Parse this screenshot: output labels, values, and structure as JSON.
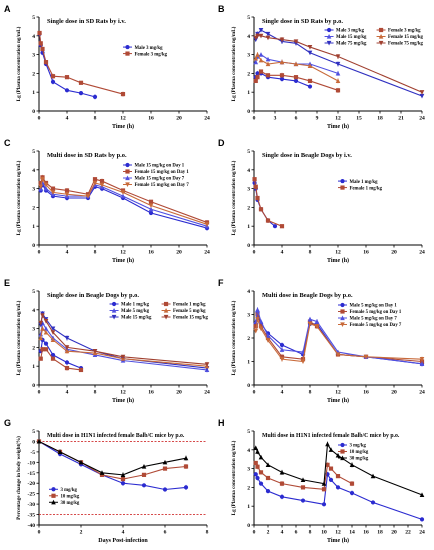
{
  "chart_data": [
    {
      "panel": "A",
      "type": "line",
      "title": "Single dose in SD Rats by i.v.",
      "xlabel": "Time (h)",
      "ylabel": "Lg (Plasma concentration ng/mL)",
      "xlim": [
        0,
        24
      ],
      "ylim": [
        0,
        5
      ],
      "xticks": [
        0,
        4,
        8,
        12,
        16,
        20,
        24
      ],
      "yticks": [
        0,
        1,
        2,
        3,
        4,
        5
      ],
      "legend_position": "center-right",
      "series": [
        {
          "name": "Male 3 mg/kg",
          "color": "#2b2bd0",
          "marker": "circle",
          "x": [
            0.08,
            0.25,
            0.5,
            1,
            2,
            4,
            6,
            8
          ],
          "y": [
            4.1,
            3.5,
            3.1,
            2.5,
            1.55,
            1.1,
            0.95,
            0.75
          ]
        },
        {
          "name": "Female 3 mg/kg",
          "color": "#b04a36",
          "marker": "square",
          "x": [
            0.08,
            0.25,
            0.5,
            1,
            2,
            4,
            6,
            12
          ],
          "y": [
            4.15,
            3.6,
            3.3,
            2.6,
            1.85,
            1.8,
            1.5,
            0.9
          ]
        }
      ]
    },
    {
      "panel": "B",
      "type": "line",
      "title": "Single dose in SD Rats by p.o.",
      "xlabel": "Time (h)",
      "ylabel": "Lg (Plasma concentration ng/mL)",
      "xlim": [
        0,
        24
      ],
      "ylim": [
        0,
        5
      ],
      "xticks": [
        0,
        3,
        6,
        9,
        12,
        15,
        18,
        21,
        24
      ],
      "yticks": [
        0,
        1,
        2,
        3,
        4,
        5
      ],
      "legend_position": "top-right",
      "series": [
        {
          "name": "Male 3 mg/kg",
          "color": "#2b2bd0",
          "marker": "circle",
          "x": [
            0.25,
            0.5,
            1,
            2,
            4,
            6,
            8
          ],
          "y": [
            1.8,
            2.0,
            2.0,
            1.8,
            1.7,
            1.6,
            1.3
          ]
        },
        {
          "name": "Male 15 mg/kg",
          "color": "#5050e0",
          "marker": "triangle",
          "x": [
            0.25,
            0.5,
            1,
            2,
            4,
            6,
            8,
            12
          ],
          "y": [
            2.6,
            2.9,
            3.0,
            2.75,
            2.6,
            2.5,
            2.5,
            2.0
          ]
        },
        {
          "name": "Male 75 mg/kg",
          "color": "#3030c0",
          "marker": "triangle-down",
          "x": [
            0.25,
            0.5,
            1,
            2,
            4,
            6,
            8,
            12,
            24
          ],
          "y": [
            3.8,
            4.1,
            4.3,
            4.1,
            3.7,
            3.6,
            3.1,
            2.5,
            0.8
          ]
        },
        {
          "name": "Female 3 mg/kg",
          "color": "#b04a36",
          "marker": "square",
          "x": [
            0.25,
            0.5,
            1,
            2,
            4,
            6,
            8,
            12
          ],
          "y": [
            1.6,
            1.8,
            2.1,
            1.9,
            1.9,
            1.8,
            1.6,
            1.1
          ]
        },
        {
          "name": "Female 15 mg/kg",
          "color": "#c86a3a",
          "marker": "triangle",
          "x": [
            0.25,
            0.5,
            1,
            2,
            4,
            6,
            8,
            12
          ],
          "y": [
            2.8,
            3.0,
            2.7,
            2.5,
            2.6,
            2.5,
            2.4,
            1.6
          ]
        },
        {
          "name": "Female 75 mg/kg",
          "color": "#a04030",
          "marker": "triangle-down",
          "x": [
            0.25,
            0.5,
            1,
            2,
            4,
            6,
            8,
            12,
            24
          ],
          "y": [
            3.9,
            4.0,
            4.0,
            3.9,
            3.8,
            3.7,
            3.4,
            2.9,
            1.0
          ]
        }
      ]
    },
    {
      "panel": "C",
      "type": "line",
      "title": "Multi dose in SD Rats by p.o.",
      "xlabel": "Time (h)",
      "ylabel": "Lg (Plasma concentration ng/mL)",
      "xlim": [
        0,
        24
      ],
      "ylim": [
        0,
        5
      ],
      "xticks": [
        0,
        4,
        8,
        12,
        16,
        20,
        24
      ],
      "yticks": [
        0,
        1,
        2,
        3,
        4,
        5
      ],
      "legend_position": "top-right",
      "series": [
        {
          "name": "Male 15 mg/kg on Day 1",
          "color": "#2b2bd0",
          "marker": "circle",
          "x": [
            0.25,
            0.5,
            1,
            2,
            4,
            7,
            8,
            9,
            12,
            16,
            24
          ],
          "y": [
            2.9,
            3.2,
            2.9,
            2.6,
            2.5,
            2.5,
            3.1,
            3.0,
            2.5,
            1.7,
            0.9
          ]
        },
        {
          "name": "Female 15 mg/kg on Day 1",
          "color": "#b04a36",
          "marker": "square",
          "x": [
            0.25,
            0.5,
            1,
            2,
            4,
            7,
            8,
            9,
            12,
            16,
            24
          ],
          "y": [
            3.3,
            3.6,
            3.3,
            3.0,
            2.9,
            2.7,
            3.5,
            3.4,
            2.9,
            2.3,
            1.2
          ]
        },
        {
          "name": "Male 15 mg/kg on Day 7",
          "color": "#5050e0",
          "marker": "triangle",
          "x": [
            0.25,
            0.5,
            1,
            2,
            4,
            7,
            8,
            9,
            12,
            16,
            24
          ],
          "y": [
            3.0,
            3.3,
            3.0,
            2.7,
            2.6,
            2.6,
            3.2,
            3.1,
            2.6,
            1.9,
            1.0
          ]
        },
        {
          "name": "Female 15 mg/kg on Day 7",
          "color": "#c86a3a",
          "marker": "triangle-down",
          "x": [
            0.25,
            0.5,
            1,
            2,
            4,
            7,
            8,
            9,
            12,
            16,
            24
          ],
          "y": [
            3.1,
            3.5,
            3.2,
            2.8,
            2.7,
            2.6,
            3.3,
            3.2,
            2.8,
            2.1,
            1.1
          ]
        }
      ]
    },
    {
      "panel": "D",
      "type": "line",
      "title": "Single dose in Beagle Dogs by i.v.",
      "xlabel": "Time (h)",
      "ylabel": "Lg (Plasma concentration ng/mL)",
      "xlim": [
        0,
        24
      ],
      "ylim": [
        0,
        5
      ],
      "xticks": [
        0,
        4,
        8,
        12,
        16,
        20,
        24
      ],
      "yticks": [
        0,
        1,
        2,
        3,
        4,
        5
      ],
      "legend_position": "center-right",
      "series": [
        {
          "name": "Male 1 mg/kg",
          "color": "#2b2bd0",
          "marker": "circle",
          "x": [
            0.08,
            0.25,
            0.5,
            1,
            2,
            3
          ],
          "y": [
            3.3,
            3.0,
            2.4,
            1.9,
            1.3,
            1.0
          ]
        },
        {
          "name": "Female 1 mg/kg",
          "color": "#b04a36",
          "marker": "square",
          "x": [
            0.08,
            0.25,
            0.5,
            1,
            2,
            4
          ],
          "y": [
            3.5,
            3.1,
            2.5,
            1.9,
            1.3,
            1.0
          ]
        }
      ]
    },
    {
      "panel": "E",
      "type": "line",
      "title": "Single dose in Beagle Dogs by p.o.",
      "xlabel": "Time (h)",
      "ylabel": "Lg (Plasma concentration ng/mL)",
      "xlim": [
        0,
        24
      ],
      "ylim": [
        0,
        5
      ],
      "xticks": [
        0,
        4,
        8,
        12,
        16,
        20,
        24
      ],
      "yticks": [
        0,
        1,
        2,
        3,
        4,
        5
      ],
      "legend_position": "top-right",
      "series": [
        {
          "name": "Male 1 mg/kg",
          "color": "#2b2bd0",
          "marker": "circle",
          "x": [
            0.25,
            0.5,
            1,
            2,
            4,
            6
          ],
          "y": [
            1.8,
            2.4,
            2.2,
            1.6,
            1.2,
            0.9
          ]
        },
        {
          "name": "Male 5 mg/kg",
          "color": "#5050e0",
          "marker": "triangle",
          "x": [
            0.25,
            0.5,
            1,
            2,
            4,
            8,
            12,
            24
          ],
          "y": [
            2.7,
            3.3,
            3.0,
            2.5,
            1.9,
            1.6,
            1.3,
            0.8
          ]
        },
        {
          "name": "Male 15 mg/kg",
          "color": "#3030c0",
          "marker": "triangle-down",
          "x": [
            0.25,
            0.5,
            1,
            2,
            4,
            8,
            12,
            24
          ],
          "y": [
            3.2,
            3.8,
            3.5,
            3.0,
            2.5,
            1.8,
            1.4,
            0.9
          ]
        },
        {
          "name": "Female 1 mg/kg",
          "color": "#b04a36",
          "marker": "square",
          "x": [
            0.25,
            0.5,
            1,
            2,
            4,
            6
          ],
          "y": [
            1.4,
            1.9,
            1.9,
            1.4,
            0.9,
            0.8
          ]
        },
        {
          "name": "Female 5 mg/kg",
          "color": "#c86a3a",
          "marker": "triangle",
          "x": [
            0.25,
            0.5,
            1,
            2,
            4,
            8,
            12,
            24
          ],
          "y": [
            2.5,
            3.0,
            2.8,
            2.4,
            1.8,
            1.7,
            1.4,
            1.0
          ]
        },
        {
          "name": "Female 15 mg/kg",
          "color": "#a04030",
          "marker": "triangle-down",
          "x": [
            0.25,
            0.5,
            1,
            2,
            4,
            8,
            12,
            24
          ],
          "y": [
            3.3,
            3.7,
            3.4,
            2.8,
            2.0,
            1.8,
            1.5,
            1.1
          ]
        }
      ]
    },
    {
      "panel": "F",
      "type": "line",
      "title": "Multi dose in Beagle Dogs by p.o.",
      "xlabel": "Time (h)",
      "ylabel": "Lg (Plasma concentration ng/mL)",
      "xlim": [
        0,
        24
      ],
      "ylim": [
        0,
        4
      ],
      "xticks": [
        0,
        4,
        8,
        12,
        16,
        20,
        24
      ],
      "yticks": [
        0,
        1,
        2,
        3,
        4
      ],
      "legend_position": "top-right",
      "series": [
        {
          "name": "Male 5 mg/kg on Day 1",
          "color": "#2b2bd0",
          "marker": "circle",
          "x": [
            0.25,
            0.5,
            1,
            2,
            4,
            7,
            8,
            9,
            12,
            16,
            24
          ],
          "y": [
            2.6,
            3.1,
            2.6,
            2.2,
            1.7,
            1.3,
            2.6,
            2.6,
            1.3,
            1.2,
            0.9
          ]
        },
        {
          "name": "Female 5 mg/kg on Day 1",
          "color": "#b04a36",
          "marker": "square",
          "x": [
            0.25,
            0.5,
            1,
            2,
            4,
            7,
            8,
            9,
            12,
            16,
            24
          ],
          "y": [
            2.5,
            3.0,
            2.5,
            2.0,
            1.2,
            1.1,
            2.7,
            2.5,
            1.3,
            1.2,
            1.0
          ]
        },
        {
          "name": "Male 5 mg/kg on Day 7",
          "color": "#5050e0",
          "marker": "triangle",
          "x": [
            0.25,
            0.5,
            1,
            2,
            4,
            7,
            8,
            9,
            12,
            16,
            24
          ],
          "y": [
            2.7,
            3.2,
            2.7,
            2.1,
            1.5,
            1.4,
            2.8,
            2.7,
            1.4,
            1.2,
            0.9
          ]
        },
        {
          "name": "Female 5 mg/kg on Day 7",
          "color": "#c86a3a",
          "marker": "triangle-down",
          "x": [
            0.25,
            0.5,
            1,
            2,
            4,
            7,
            8,
            9,
            12,
            16,
            24
          ],
          "y": [
            2.3,
            2.8,
            2.4,
            1.9,
            1.1,
            1.0,
            2.6,
            2.5,
            1.3,
            1.2,
            1.1
          ]
        }
      ]
    },
    {
      "panel": "G",
      "type": "line",
      "title": "Multi dose in H1N1 infected female Balb/C mice by p.o.",
      "xlabel": "Days Post-infection",
      "ylabel": "Percentage change in body weight(%)",
      "xlim": [
        0,
        8
      ],
      "ylim": [
        -40,
        5
      ],
      "xticks": [
        0,
        2,
        4,
        6,
        8
      ],
      "yticks": [
        5,
        0,
        -5,
        -10,
        -15,
        -20,
        -25,
        -30,
        -35,
        -40
      ],
      "ref_lines": [
        0,
        -35
      ],
      "legend_position": "bottom-left",
      "series": [
        {
          "name": "3 mg/kg",
          "color": "#2b2bd0",
          "marker": "circle",
          "x": [
            0,
            1,
            2,
            3,
            4,
            5,
            6,
            7
          ],
          "y": [
            0,
            -6,
            -11,
            -16,
            -20,
            -21,
            -23,
            -22
          ]
        },
        {
          "name": "10 mg/kg",
          "color": "#b04a36",
          "marker": "square",
          "x": [
            0,
            1,
            2,
            3,
            4,
            5,
            6,
            7
          ],
          "y": [
            0,
            -5,
            -10,
            -16,
            -18,
            -16,
            -13,
            -12
          ]
        },
        {
          "name": "30 mg/kg",
          "color": "#000000",
          "marker": "triangle",
          "x": [
            0,
            1,
            2,
            3,
            4,
            5,
            6,
            7
          ],
          "y": [
            0,
            -5,
            -10,
            -15,
            -16,
            -12,
            -10,
            -8
          ]
        }
      ]
    },
    {
      "panel": "H",
      "type": "line",
      "title": "Multi dose in H1N1 infected female Balb/C mice by p.o.",
      "xlabel": "Time (h)",
      "ylabel": "Lg (Plasma concentration ng/mL)",
      "xlim": [
        0,
        24
      ],
      "ylim": [
        0,
        5
      ],
      "xticks": [
        0,
        2,
        4,
        6,
        8,
        10,
        12,
        14,
        16,
        18,
        20,
        22,
        24
      ],
      "yticks": [
        0,
        1,
        2,
        3,
        4,
        5
      ],
      "legend_position": "top-right",
      "series": [
        {
          "name": "3 mg/kg",
          "color": "#2b2bd0",
          "marker": "circle",
          "x": [
            0.25,
            0.5,
            1,
            2,
            4,
            7,
            10,
            10.5,
            11,
            12,
            14,
            17,
            24
          ],
          "y": [
            2.7,
            2.5,
            2.2,
            1.8,
            1.5,
            1.3,
            1.1,
            2.7,
            2.4,
            2.0,
            1.7,
            1.2,
            0.3
          ]
        },
        {
          "name": "10 mg/kg",
          "color": "#b04a36",
          "marker": "square",
          "x": [
            0.25,
            0.5,
            1,
            2,
            4,
            7,
            10,
            10.5,
            11,
            12,
            14
          ],
          "y": [
            3.3,
            3.1,
            2.8,
            2.5,
            2.2,
            2.0,
            1.9,
            3.2,
            3.0,
            2.6,
            2.2
          ]
        },
        {
          "name": "30 mg/kg",
          "color": "#000000",
          "marker": "triangle",
          "x": [
            0.25,
            0.5,
            1,
            2,
            4,
            7,
            10,
            10.5,
            11,
            12,
            14,
            17,
            24
          ],
          "y": [
            4.1,
            3.9,
            3.6,
            3.2,
            2.8,
            2.4,
            2.2,
            4.3,
            4.0,
            3.7,
            3.2,
            2.6,
            1.6
          ]
        }
      ]
    }
  ]
}
